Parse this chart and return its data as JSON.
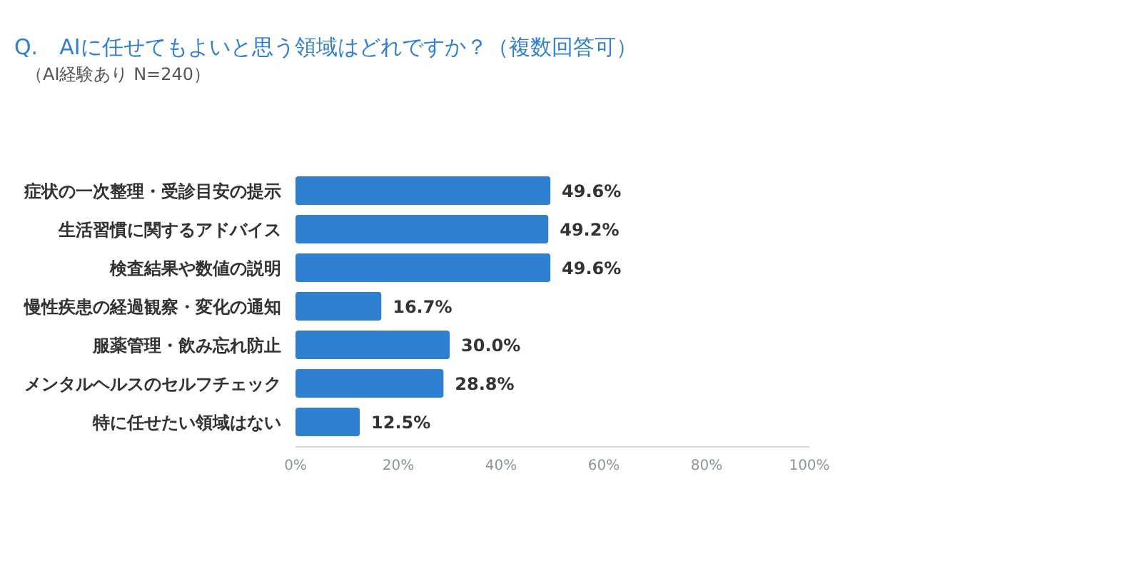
{
  "chart_data": {
    "type": "bar",
    "orientation": "horizontal",
    "title": "Q.　AIに任せてもよいと思う領域はどれですか？（複数回答可）",
    "subtitle": "（AI経験あり N=240）",
    "categories": [
      "症状の一次整理・受診目安の提示",
      "生活習慣に関するアドバイス",
      "検査結果や数値の説明",
      "慢性疾患の経過観察・変化の通知",
      "服薬管理・飲み忘れ防止",
      "メンタルヘルスのセルフチェック",
      "特に任せたい領域はない"
    ],
    "values": [
      49.6,
      49.2,
      49.6,
      16.7,
      30.0,
      28.8,
      12.5
    ],
    "value_labels": [
      "49.6%",
      "49.2%",
      "49.6%",
      "16.7%",
      "30.0%",
      "28.8%",
      "12.5%"
    ],
    "color": "#2f7fd3",
    "xlim": [
      0,
      100
    ],
    "xticks": [
      {
        "value": 0,
        "label": "0%"
      },
      {
        "value": 20,
        "label": "20%"
      },
      {
        "value": 40,
        "label": "40%"
      },
      {
        "value": 60,
        "label": "60%"
      },
      {
        "value": 80,
        "label": "80%"
      },
      {
        "value": 100,
        "label": "100%"
      }
    ]
  }
}
